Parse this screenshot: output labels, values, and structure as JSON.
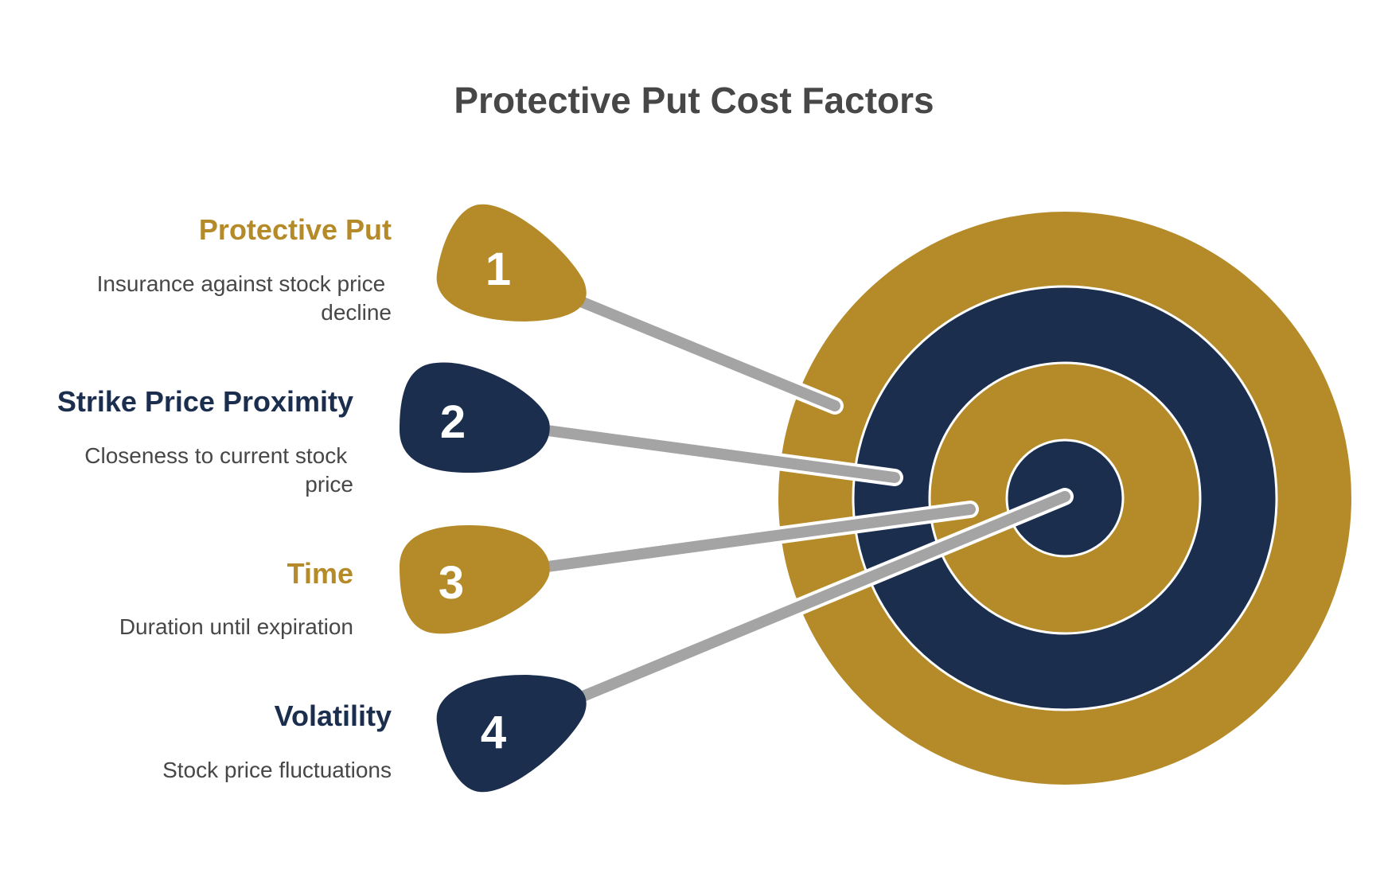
{
  "title": "Protective Put Cost Factors",
  "colors": {
    "gold": "#B58A28",
    "navy": "#1B2E4E",
    "stick": "#A4A4A4",
    "title": "#474747",
    "body_text": "#474747",
    "ring_border": "#FFFFFF"
  },
  "factors": [
    {
      "number": "1",
      "heading": "Protective Put",
      "description_lines": [
        "Insurance against stock price",
        "decline"
      ],
      "color": "gold"
    },
    {
      "number": "2",
      "heading": "Strike Price Proximity",
      "description_lines": [
        "Closeness to current stock",
        "price"
      ],
      "color": "navy"
    },
    {
      "number": "3",
      "heading": "Time",
      "description_lines": [
        "Duration until expiration"
      ],
      "color": "gold"
    },
    {
      "number": "4",
      "heading": "Volatility",
      "description_lines": [
        "Stock price fluctuations"
      ],
      "color": "navy"
    }
  ],
  "target": {
    "rings": [
      "gold",
      "navy",
      "gold",
      "navy"
    ],
    "icon": "target-icon"
  }
}
